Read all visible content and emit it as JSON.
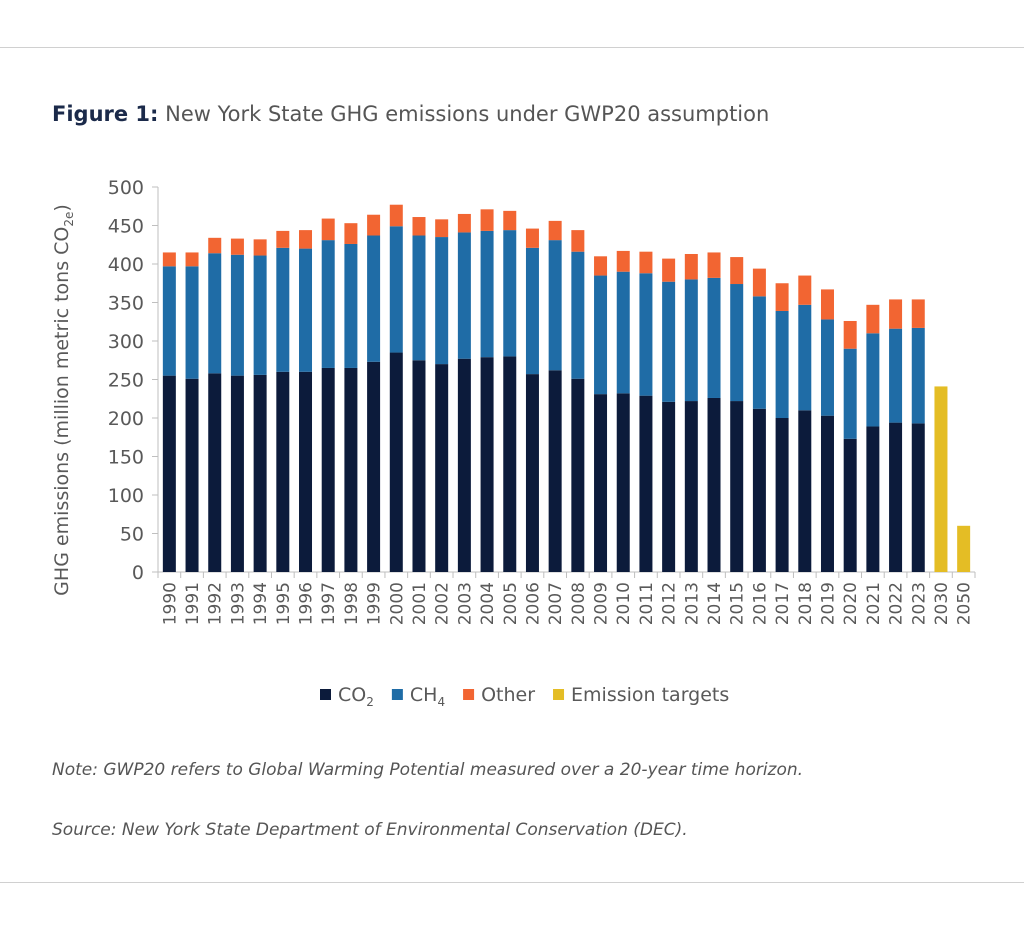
{
  "title": {
    "prefix": "Figure 1:",
    "text": "New York State GHG emissions under GWP20 assumption"
  },
  "chart_data": {
    "type": "bar",
    "stacked": true,
    "title": "New York State GHG emissions under GWP20 assumption",
    "ylabel": "GHG emissions (million metric tons CO2e)",
    "ylabel_main": "GHG emissions (million metric tons CO",
    "ylabel_sub": "2e",
    "ylabel_end": ")",
    "ylim": [
      0,
      500
    ],
    "yticks": [
      0,
      50,
      100,
      150,
      200,
      250,
      300,
      350,
      400,
      450,
      500
    ],
    "grid": false,
    "legend": "bottom",
    "categories": [
      "1990",
      "1991",
      "1992",
      "1993",
      "1994",
      "1995",
      "1996",
      "1997",
      "1998",
      "1999",
      "2000",
      "2001",
      "2002",
      "2003",
      "2004",
      "2005",
      "2006",
      "2007",
      "2008",
      "2009",
      "2010",
      "2011",
      "2012",
      "2013",
      "2014",
      "2015",
      "2016",
      "2017",
      "2018",
      "2019",
      "2020",
      "2021",
      "2022",
      "2023",
      "2030",
      "2050"
    ],
    "series": [
      {
        "name": "CO2",
        "label": "CO",
        "sub": "2",
        "color": "#0c1b3b",
        "values": [
          255,
          251,
          258,
          255,
          256,
          260,
          260,
          265,
          265,
          273,
          285,
          275,
          270,
          277,
          279,
          280,
          257,
          262,
          251,
          231,
          232,
          229,
          221,
          222,
          226,
          222,
          212,
          200,
          210,
          203,
          173,
          189,
          194,
          193,
          null,
          null
        ]
      },
      {
        "name": "CH4",
        "label": "CH",
        "sub": "4",
        "color": "#1f6ca6",
        "values": [
          142,
          146,
          156,
          157,
          155,
          161,
          160,
          166,
          161,
          164,
          164,
          162,
          165,
          164,
          164,
          164,
          164,
          169,
          165,
          154,
          158,
          159,
          156,
          158,
          156,
          152,
          146,
          139,
          137,
          125,
          117,
          121,
          122,
          124,
          null,
          null
        ]
      },
      {
        "name": "Other",
        "label": "Other",
        "sub": "",
        "color": "#f26532",
        "values": [
          18,
          18,
          20,
          21,
          21,
          22,
          24,
          28,
          27,
          27,
          28,
          24,
          23,
          24,
          28,
          25,
          25,
          25,
          28,
          25,
          27,
          28,
          30,
          33,
          33,
          35,
          36,
          36,
          38,
          39,
          36,
          37,
          38,
          37,
          null,
          null
        ]
      },
      {
        "name": "Emission targets",
        "label": "Emission targets",
        "sub": "",
        "color": "#e4bd25",
        "values": [
          null,
          null,
          null,
          null,
          null,
          null,
          null,
          null,
          null,
          null,
          null,
          null,
          null,
          null,
          null,
          null,
          null,
          null,
          null,
          null,
          null,
          null,
          null,
          null,
          null,
          null,
          null,
          null,
          null,
          null,
          null,
          null,
          null,
          null,
          241,
          60
        ]
      }
    ]
  },
  "notes": {
    "note": "Note: GWP20 refers to Global Warming Potential measured over a 20-year time horizon.",
    "source": "Source: New York State Department of Environmental Conservation (DEC)."
  }
}
